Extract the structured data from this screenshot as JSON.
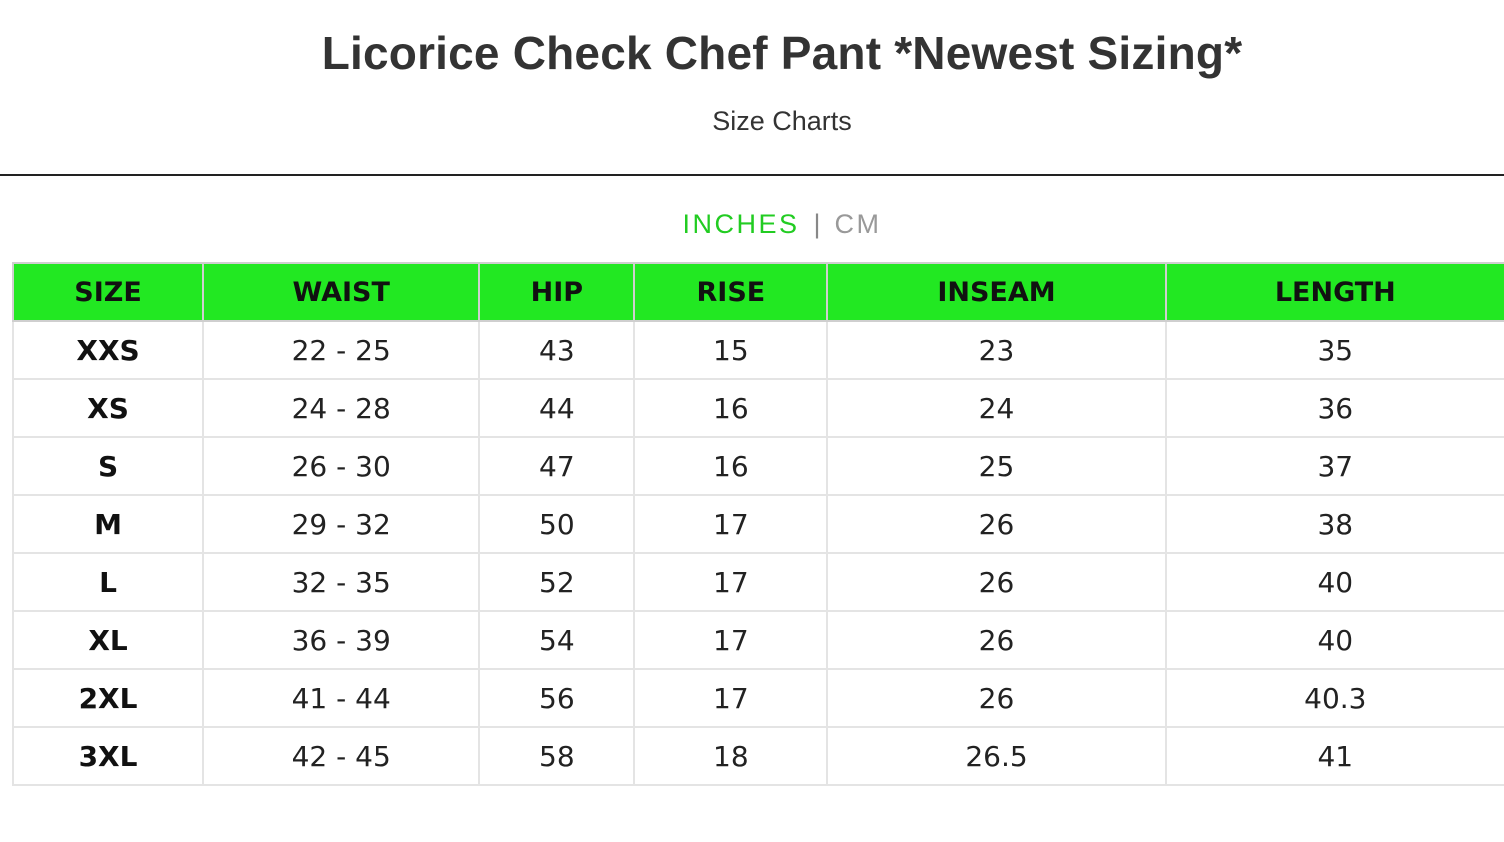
{
  "header": {
    "title": "Licorice Check Chef Pant *Newest Sizing*",
    "subtitle": "Size Charts"
  },
  "units": {
    "active": "INCHES",
    "separator": "|",
    "inactive": "CM"
  },
  "colors": {
    "accent": "#22e822",
    "active_unit": "#22cc22",
    "inactive_unit": "#999999"
  },
  "table": {
    "headers": [
      "SIZE",
      "WAIST",
      "HIP",
      "RISE",
      "INSEAM",
      "LENGTH"
    ],
    "rows": [
      [
        "XXS",
        "22 - 25",
        "43",
        "15",
        "23",
        "35"
      ],
      [
        "XS",
        "24 - 28",
        "44",
        "16",
        "24",
        "36"
      ],
      [
        "S",
        "26 - 30",
        "47",
        "16",
        "25",
        "37"
      ],
      [
        "M",
        "29 - 32",
        "50",
        "17",
        "26",
        "38"
      ],
      [
        "L",
        "32 - 35",
        "52",
        "17",
        "26",
        "40"
      ],
      [
        "XL",
        "36 - 39",
        "54",
        "17",
        "26",
        "40"
      ],
      [
        "2XL",
        "41 - 44",
        "56",
        "17",
        "26",
        "40.3"
      ],
      [
        "3XL",
        "42 - 45",
        "58",
        "18",
        "26.5",
        "41"
      ]
    ]
  }
}
